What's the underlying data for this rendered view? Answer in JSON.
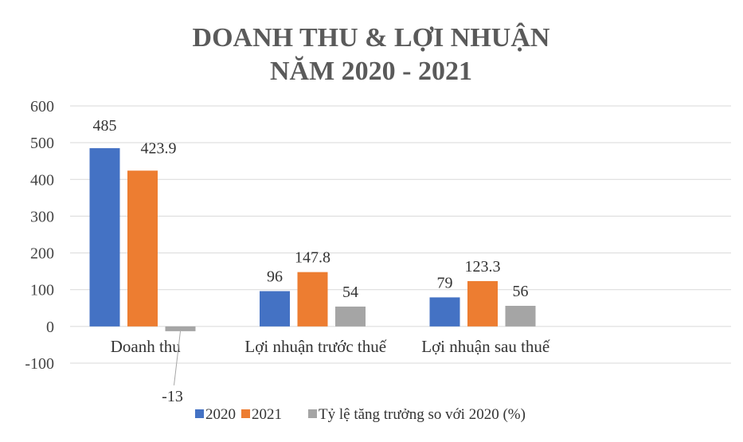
{
  "chart_data": {
    "type": "bar",
    "title": [
      "DOANH THU & LỢI NHUẬN",
      "NĂM 2020 - 2021"
    ],
    "xlabel": "",
    "ylabel": "",
    "ylim": [
      -100,
      600
    ],
    "yticks": [
      600,
      500,
      400,
      300,
      200,
      100,
      0,
      -100
    ],
    "ytick_labels": [
      "600",
      "500",
      "400",
      "300",
      "200",
      "100",
      "0",
      "-100"
    ],
    "categories": [
      "Doanh thu",
      "Lợi nhuận trước thuế",
      "Lợi nhuận sau thuế"
    ],
    "series": [
      {
        "name": "2020",
        "color": "#4472C4",
        "values": [
          485,
          96,
          79
        ],
        "labels": [
          "485",
          "96",
          "79"
        ]
      },
      {
        "name": "2021",
        "color": "#ED7D31",
        "values": [
          423.9,
          147.8,
          123.3
        ],
        "labels": [
          "423.9",
          "147.8",
          "123.3"
        ]
      },
      {
        "name": "Tỷ lệ tăng trưởng so với 2020 (%)",
        "color": "#A5A5A5",
        "values": [
          -13,
          54,
          56
        ],
        "labels": [
          "-13",
          "54",
          "56"
        ]
      }
    ],
    "grid": true,
    "legend_position": "bottom"
  }
}
